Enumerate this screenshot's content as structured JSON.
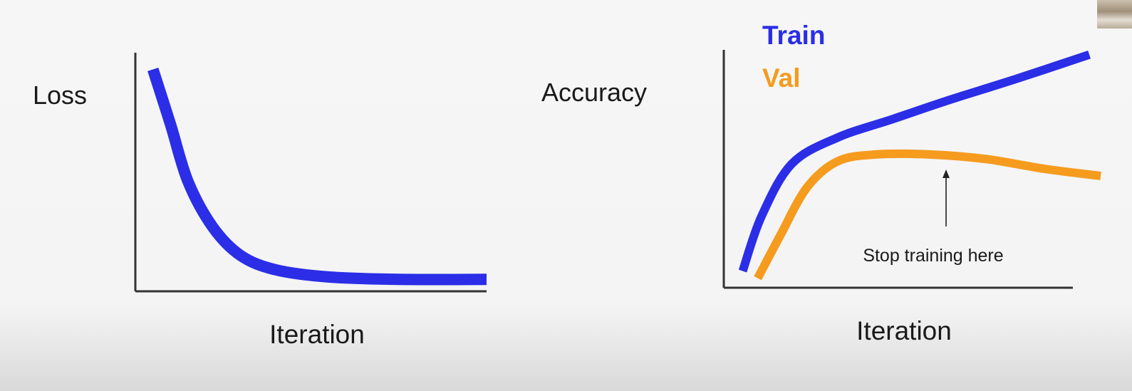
{
  "charts": {
    "loss": {
      "ylabel": "Loss",
      "xlabel": "Iteration"
    },
    "accuracy": {
      "ylabel": "Accuracy",
      "xlabel": "Iteration",
      "legend_train": "Train",
      "legend_val": "Val",
      "annotation": "Stop training here"
    }
  },
  "colors": {
    "train": "#2b2ee6",
    "val": "#f59b1e",
    "axis": "#333333",
    "text": "#1a1a1a"
  },
  "chart_data": [
    {
      "type": "line",
      "ylabel": "Loss",
      "xlabel": "Iteration",
      "axis_ticks": "none",
      "series": [
        {
          "color": "#2b2ee6",
          "x": [
            0.05,
            0.1,
            0.15,
            0.22,
            0.3,
            0.4,
            0.55,
            0.75,
            1.0
          ],
          "y": [
            0.93,
            0.7,
            0.46,
            0.27,
            0.15,
            0.09,
            0.06,
            0.05,
            0.05
          ]
        }
      ]
    },
    {
      "type": "line",
      "ylabel": "Accuracy",
      "xlabel": "Iteration",
      "axis_ticks": "none",
      "legend": "top-left",
      "series": [
        {
          "name": "Train",
          "color": "#2b2ee6",
          "x": [
            0.05,
            0.1,
            0.18,
            0.3,
            0.45,
            0.6,
            0.78,
            0.97
          ],
          "y": [
            0.07,
            0.3,
            0.52,
            0.63,
            0.71,
            0.79,
            0.88,
            0.98
          ]
        },
        {
          "name": "Val",
          "color": "#f59b1e",
          "x": [
            0.09,
            0.15,
            0.22,
            0.3,
            0.4,
            0.55,
            0.7,
            0.85,
            1.0
          ],
          "y": [
            0.04,
            0.22,
            0.42,
            0.53,
            0.56,
            0.56,
            0.54,
            0.5,
            0.47
          ]
        }
      ],
      "annotation": {
        "text": "Stop training here",
        "x": 0.62
      }
    }
  ]
}
